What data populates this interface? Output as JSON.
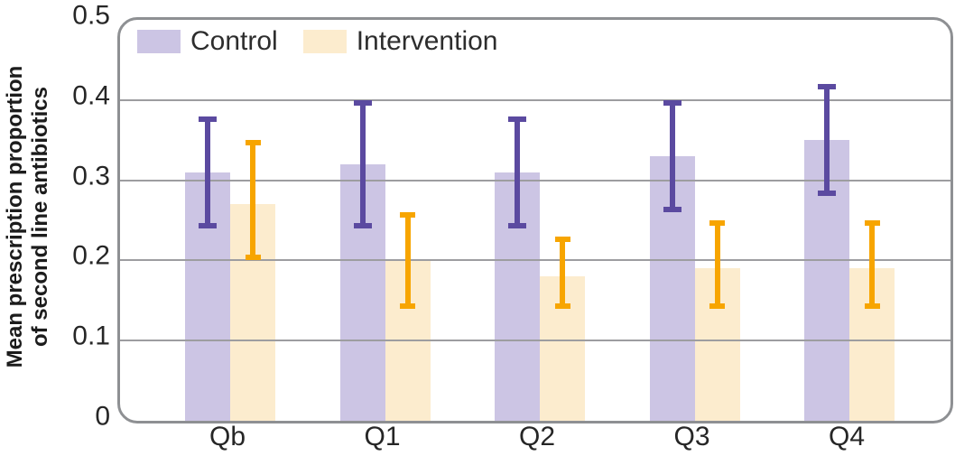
{
  "chart_data": {
    "type": "bar",
    "title": "",
    "categories": [
      "Qb",
      "Q1",
      "Q2",
      "Q3",
      "Q4"
    ],
    "series": [
      {
        "name": "Control",
        "values": [
          0.31,
          0.32,
          0.31,
          0.33,
          0.35
        ],
        "error_low": [
          0.24,
          0.24,
          0.24,
          0.26,
          0.28
        ],
        "error_high": [
          0.38,
          0.4,
          0.38,
          0.4,
          0.42
        ],
        "bar_color": "#ccc5e4",
        "error_color": "#5b4aa0"
      },
      {
        "name": "Intervention",
        "values": [
          0.27,
          0.2,
          0.18,
          0.19,
          0.19
        ],
        "error_low": [
          0.2,
          0.14,
          0.14,
          0.14,
          0.14
        ],
        "error_high": [
          0.35,
          0.26,
          0.23,
          0.25,
          0.25
        ],
        "bar_color": "#fcecce",
        "error_color": "#f7a500"
      }
    ],
    "xlabel": "",
    "ylabel_line1": "Mean prescription proportion",
    "ylabel_line2": "of second line antibiotics",
    "ylim": [
      0,
      0.5
    ],
    "yticks": [
      0,
      0.1,
      0.2,
      0.3,
      0.4,
      0.5
    ],
    "ytick_labels": [
      "0",
      "0.1",
      "0.2",
      "0.3",
      "0.4",
      "0.5"
    ],
    "grid": true,
    "gridlines_over_bars": true,
    "legend_position": "top-left",
    "frame_color": "#8e9093",
    "grid_color": "#9d9da0",
    "text_color": "#262626"
  }
}
